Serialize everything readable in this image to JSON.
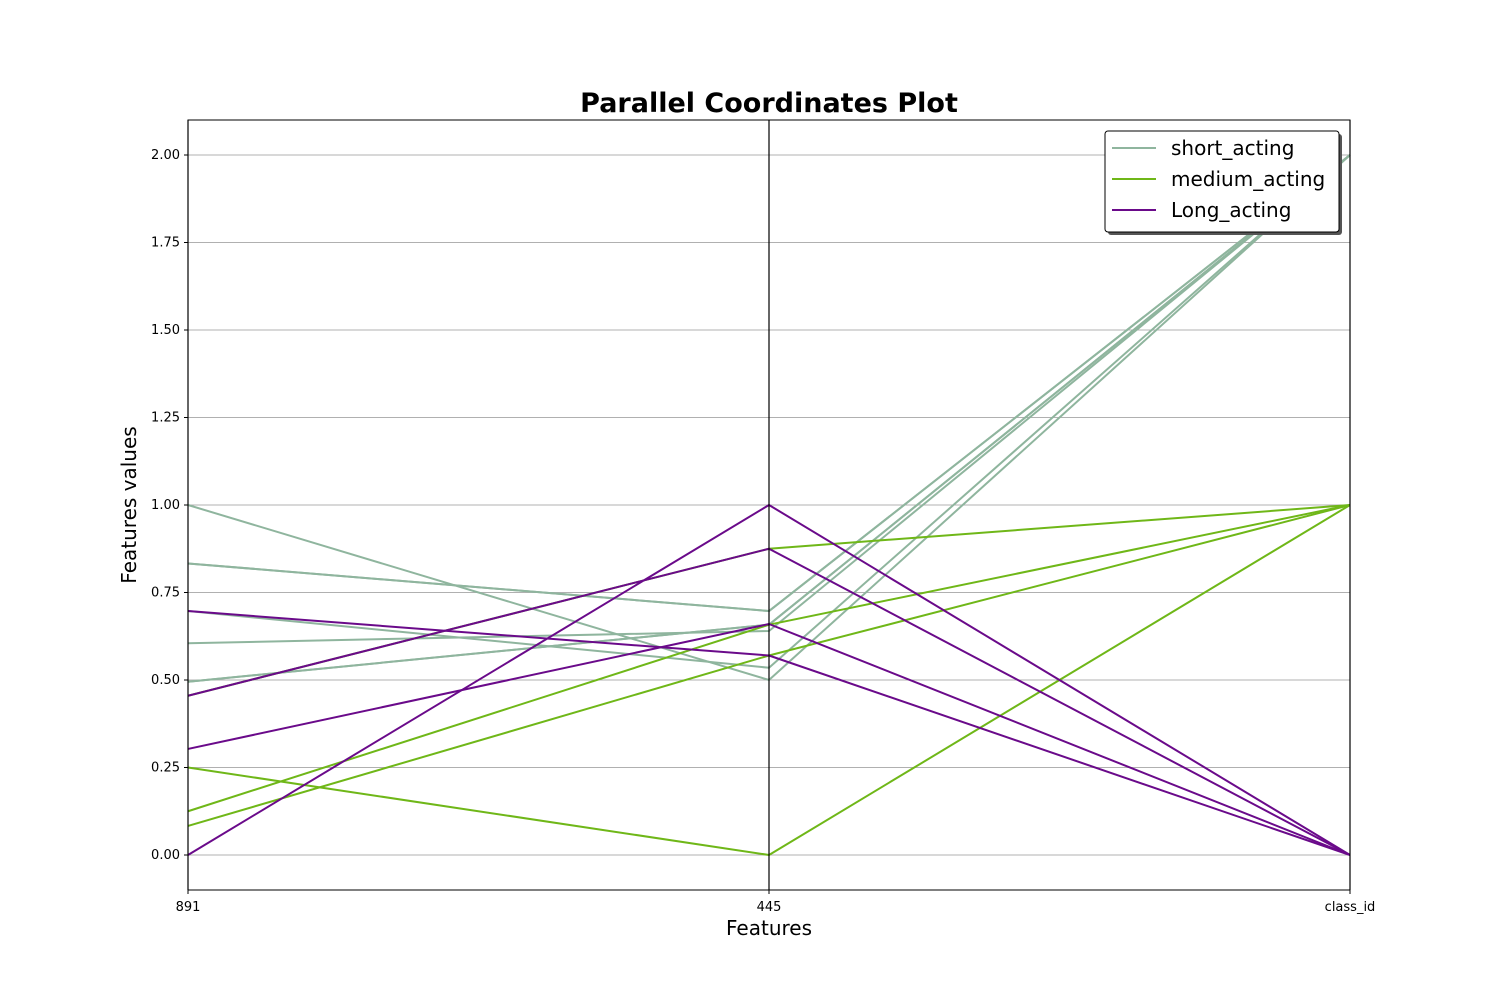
{
  "chart_data": {
    "type": "line",
    "subtype": "parallel-coordinates",
    "title": "Parallel Coordinates Plot",
    "xlabel": "Features",
    "ylabel": "Features values",
    "categories": [
      "891",
      "445",
      "class_id"
    ],
    "ylim": [
      -0.1,
      2.1
    ],
    "yticks": [
      "0.00",
      "0.25",
      "0.50",
      "0.75",
      "1.00",
      "1.25",
      "1.50",
      "1.75",
      "2.00"
    ],
    "grid": true,
    "legend_position": "top-right",
    "classes": [
      {
        "name": "short_acting",
        "color": "#8fb59e"
      },
      {
        "name": "medium_acting",
        "color": "#6fb718"
      },
      {
        "name": "Long_acting",
        "color": "#6a0a8a"
      }
    ],
    "lines": [
      {
        "class": "short_acting",
        "values": [
          1.0,
          0.5,
          2.0
        ]
      },
      {
        "class": "short_acting",
        "values": [
          0.833,
          0.697,
          2.0
        ]
      },
      {
        "class": "short_acting",
        "values": [
          0.833,
          0.697,
          2.0
        ]
      },
      {
        "class": "short_acting",
        "values": [
          0.697,
          0.535,
          2.0
        ]
      },
      {
        "class": "short_acting",
        "values": [
          0.605,
          0.64,
          2.0
        ]
      },
      {
        "class": "short_acting",
        "values": [
          0.495,
          0.658,
          2.0
        ]
      },
      {
        "class": "short_acting",
        "values": [
          0.495,
          0.658,
          2.0
        ]
      },
      {
        "class": "medium_acting",
        "values": [
          0.25,
          0.0,
          1.0
        ]
      },
      {
        "class": "medium_acting",
        "values": [
          0.125,
          0.658,
          1.0
        ]
      },
      {
        "class": "medium_acting",
        "values": [
          0.083,
          0.57,
          1.0
        ]
      },
      {
        "class": "medium_acting",
        "values": [
          0.455,
          0.875,
          1.0
        ]
      },
      {
        "class": "Long_acting",
        "values": [
          0.697,
          0.57,
          0.0
        ]
      },
      {
        "class": "Long_acting",
        "values": [
          0.455,
          0.875,
          0.0
        ]
      },
      {
        "class": "Long_acting",
        "values": [
          0.303,
          0.66,
          0.0
        ]
      },
      {
        "class": "Long_acting",
        "values": [
          0.0,
          1.0,
          0.0
        ]
      }
    ]
  }
}
